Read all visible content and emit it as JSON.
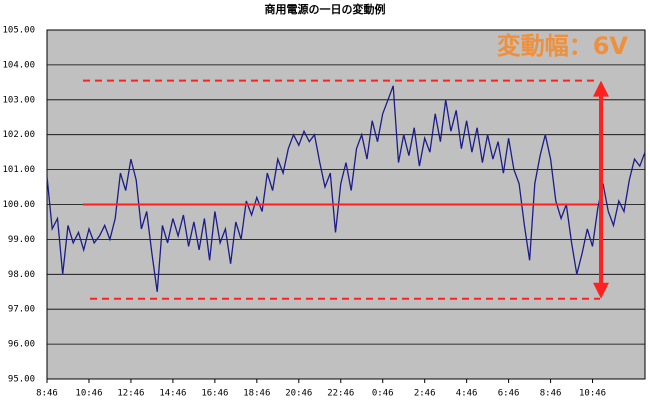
{
  "chart_data": {
    "type": "line",
    "title": "商用電源の一日の変動例",
    "annotation": "変動幅：6V",
    "annotation_color": "#f0903a",
    "categories": [
      "8:46",
      null,
      null,
      null,
      null,
      null,
      null,
      null,
      "10:46",
      null,
      null,
      null,
      null,
      null,
      null,
      null,
      "12:46",
      null,
      null,
      null,
      null,
      null,
      null,
      null,
      "14:46",
      null,
      null,
      null,
      null,
      null,
      null,
      null,
      "16:46",
      null,
      null,
      null,
      null,
      null,
      null,
      null,
      "18:46",
      null,
      null,
      null,
      null,
      null,
      null,
      null,
      "20:46",
      null,
      null,
      null,
      null,
      null,
      null,
      null,
      "22:46",
      null,
      null,
      null,
      null,
      null,
      null,
      null,
      "0:46",
      null,
      null,
      null,
      null,
      null,
      null,
      null,
      "2:46",
      null,
      null,
      null,
      null,
      null,
      null,
      null,
      "4:46",
      null,
      null,
      null,
      null,
      null,
      null,
      null,
      "6:46",
      null,
      null,
      null,
      null,
      null,
      null,
      null,
      "8:46",
      null,
      null,
      null,
      null,
      null,
      null,
      null,
      "10:46",
      null,
      null,
      null,
      null,
      null,
      null,
      null,
      null,
      null,
      null
    ],
    "series": [
      {
        "color": "#1c1c8a",
        "values": [
          100.8,
          99.3,
          99.6,
          98.0,
          99.4,
          98.9,
          99.2,
          98.7,
          99.3,
          98.9,
          99.1,
          99.4,
          99.0,
          99.6,
          100.9,
          100.4,
          101.3,
          100.7,
          99.3,
          99.8,
          98.6,
          97.5,
          99.4,
          98.9,
          99.6,
          99.1,
          99.7,
          98.8,
          99.5,
          98.7,
          99.6,
          98.4,
          99.8,
          98.9,
          99.3,
          98.3,
          99.5,
          99.0,
          100.1,
          99.7,
          100.2,
          99.8,
          100.9,
          100.4,
          101.3,
          100.9,
          101.6,
          102.0,
          101.7,
          102.1,
          101.8,
          102.0,
          101.2,
          100.5,
          100.9,
          99.2,
          100.6,
          101.2,
          100.4,
          101.6,
          102.0,
          101.3,
          102.4,
          101.8,
          102.6,
          103.0,
          103.4,
          101.2,
          102.0,
          101.4,
          102.2,
          101.1,
          101.9,
          101.5,
          102.6,
          101.8,
          103.0,
          102.1,
          102.7,
          101.6,
          102.4,
          101.5,
          102.2,
          101.2,
          102.0,
          101.3,
          101.8,
          100.9,
          101.9,
          101.0,
          100.6,
          99.4,
          98.4,
          100.6,
          101.4,
          102.0,
          101.3,
          100.1,
          99.6,
          100.0,
          98.9,
          98.0,
          98.6,
          99.3,
          98.8,
          99.9,
          100.6,
          99.8,
          99.4,
          100.1,
          99.8,
          100.7,
          101.3,
          101.1,
          101.5
        ]
      }
    ],
    "reference_lines": [
      {
        "value": 103.55,
        "style": "dashed",
        "color": "#ff2020"
      },
      {
        "value": 100.0,
        "style": "solid",
        "color": "#ff2020"
      },
      {
        "value": 97.3,
        "style": "dashed",
        "color": "#ff2020"
      }
    ],
    "ylim": [
      95,
      105
    ],
    "yticks": [
      {
        "value": 95,
        "label": "95.00"
      },
      {
        "value": 96,
        "label": "96.00"
      },
      {
        "value": 97,
        "label": "97.00"
      },
      {
        "value": 98,
        "label": "98.00"
      },
      {
        "value": 99,
        "label": "99.00"
      },
      {
        "value": 100,
        "label": "100.00"
      },
      {
        "value": 101,
        "label": "101.00"
      },
      {
        "value": 102,
        "label": "102.00"
      },
      {
        "value": 103,
        "label": "103.00"
      },
      {
        "value": 104,
        "label": "104.00"
      },
      {
        "value": 105,
        "label": "105.00"
      }
    ],
    "grid": true,
    "background": "#c0c0c0"
  }
}
